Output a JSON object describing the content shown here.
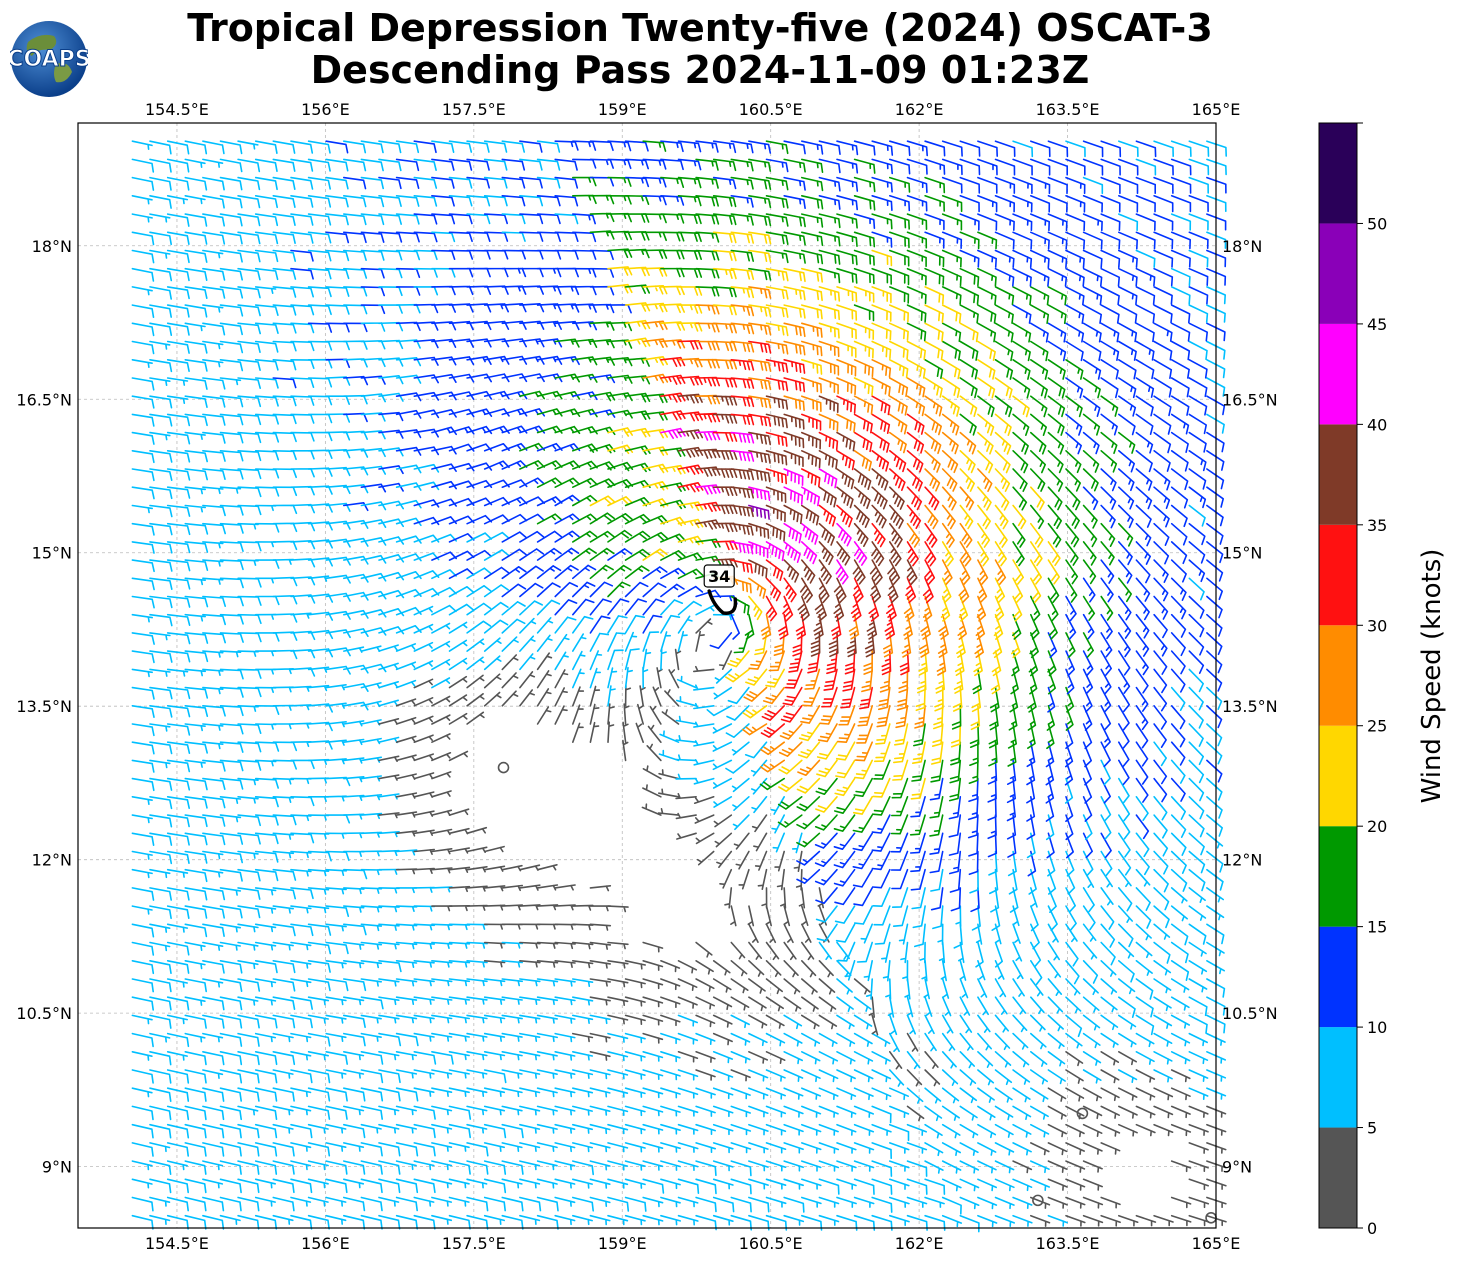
{
  "header": {
    "title_line1": "Tropical Depression Twenty-five (2024) OSCAT-3",
    "title_line2": "Descending Pass 2024-11-09 01:23Z",
    "logo_text": "COAPS"
  },
  "map": {
    "lon_range": [
      153.5,
      165.0
    ],
    "lat_range": [
      8.4,
      19.2
    ],
    "lon_ticks": [
      "154.5°E",
      "156°E",
      "157.5°E",
      "159°E",
      "160.5°E",
      "162°E",
      "163.5°E",
      "165°E"
    ],
    "lon_tick_values": [
      154.5,
      156,
      157.5,
      159,
      160.5,
      162,
      163.5,
      165
    ],
    "lat_ticks": [
      "9°N",
      "10.5°N",
      "12°N",
      "13.5°N",
      "15°N",
      "16.5°N",
      "18°N"
    ],
    "lat_tick_values": [
      9,
      10.5,
      12,
      13.5,
      15,
      16.5,
      18
    ],
    "grid": true,
    "storm_label": "34",
    "storm_center": {
      "lon": 160.0,
      "lat": 14.45
    },
    "calm_points": [
      {
        "lon": 157.8,
        "lat": 12.9
      },
      {
        "lon": 163.65,
        "lat": 9.52
      },
      {
        "lon": 163.2,
        "lat": 8.67
      },
      {
        "lon": 164.95,
        "lat": 8.5
      }
    ]
  },
  "colorbar": {
    "label": "Wind Speed (knots)",
    "tick_labels": [
      "0",
      "5",
      "10",
      "15",
      "20",
      "25",
      "30",
      "35",
      "40",
      "45",
      "50"
    ],
    "bounds": [
      0,
      5,
      10,
      15,
      20,
      25,
      30,
      35,
      40,
      45,
      50,
      55
    ],
    "colors": [
      "#555555",
      "#00bfff",
      "#0033ff",
      "#009900",
      "#ffd700",
      "#ff8c00",
      "#ff1111",
      "#7f3a28",
      "#ff00ff",
      "#8a00b8",
      "#2a0059"
    ]
  }
}
